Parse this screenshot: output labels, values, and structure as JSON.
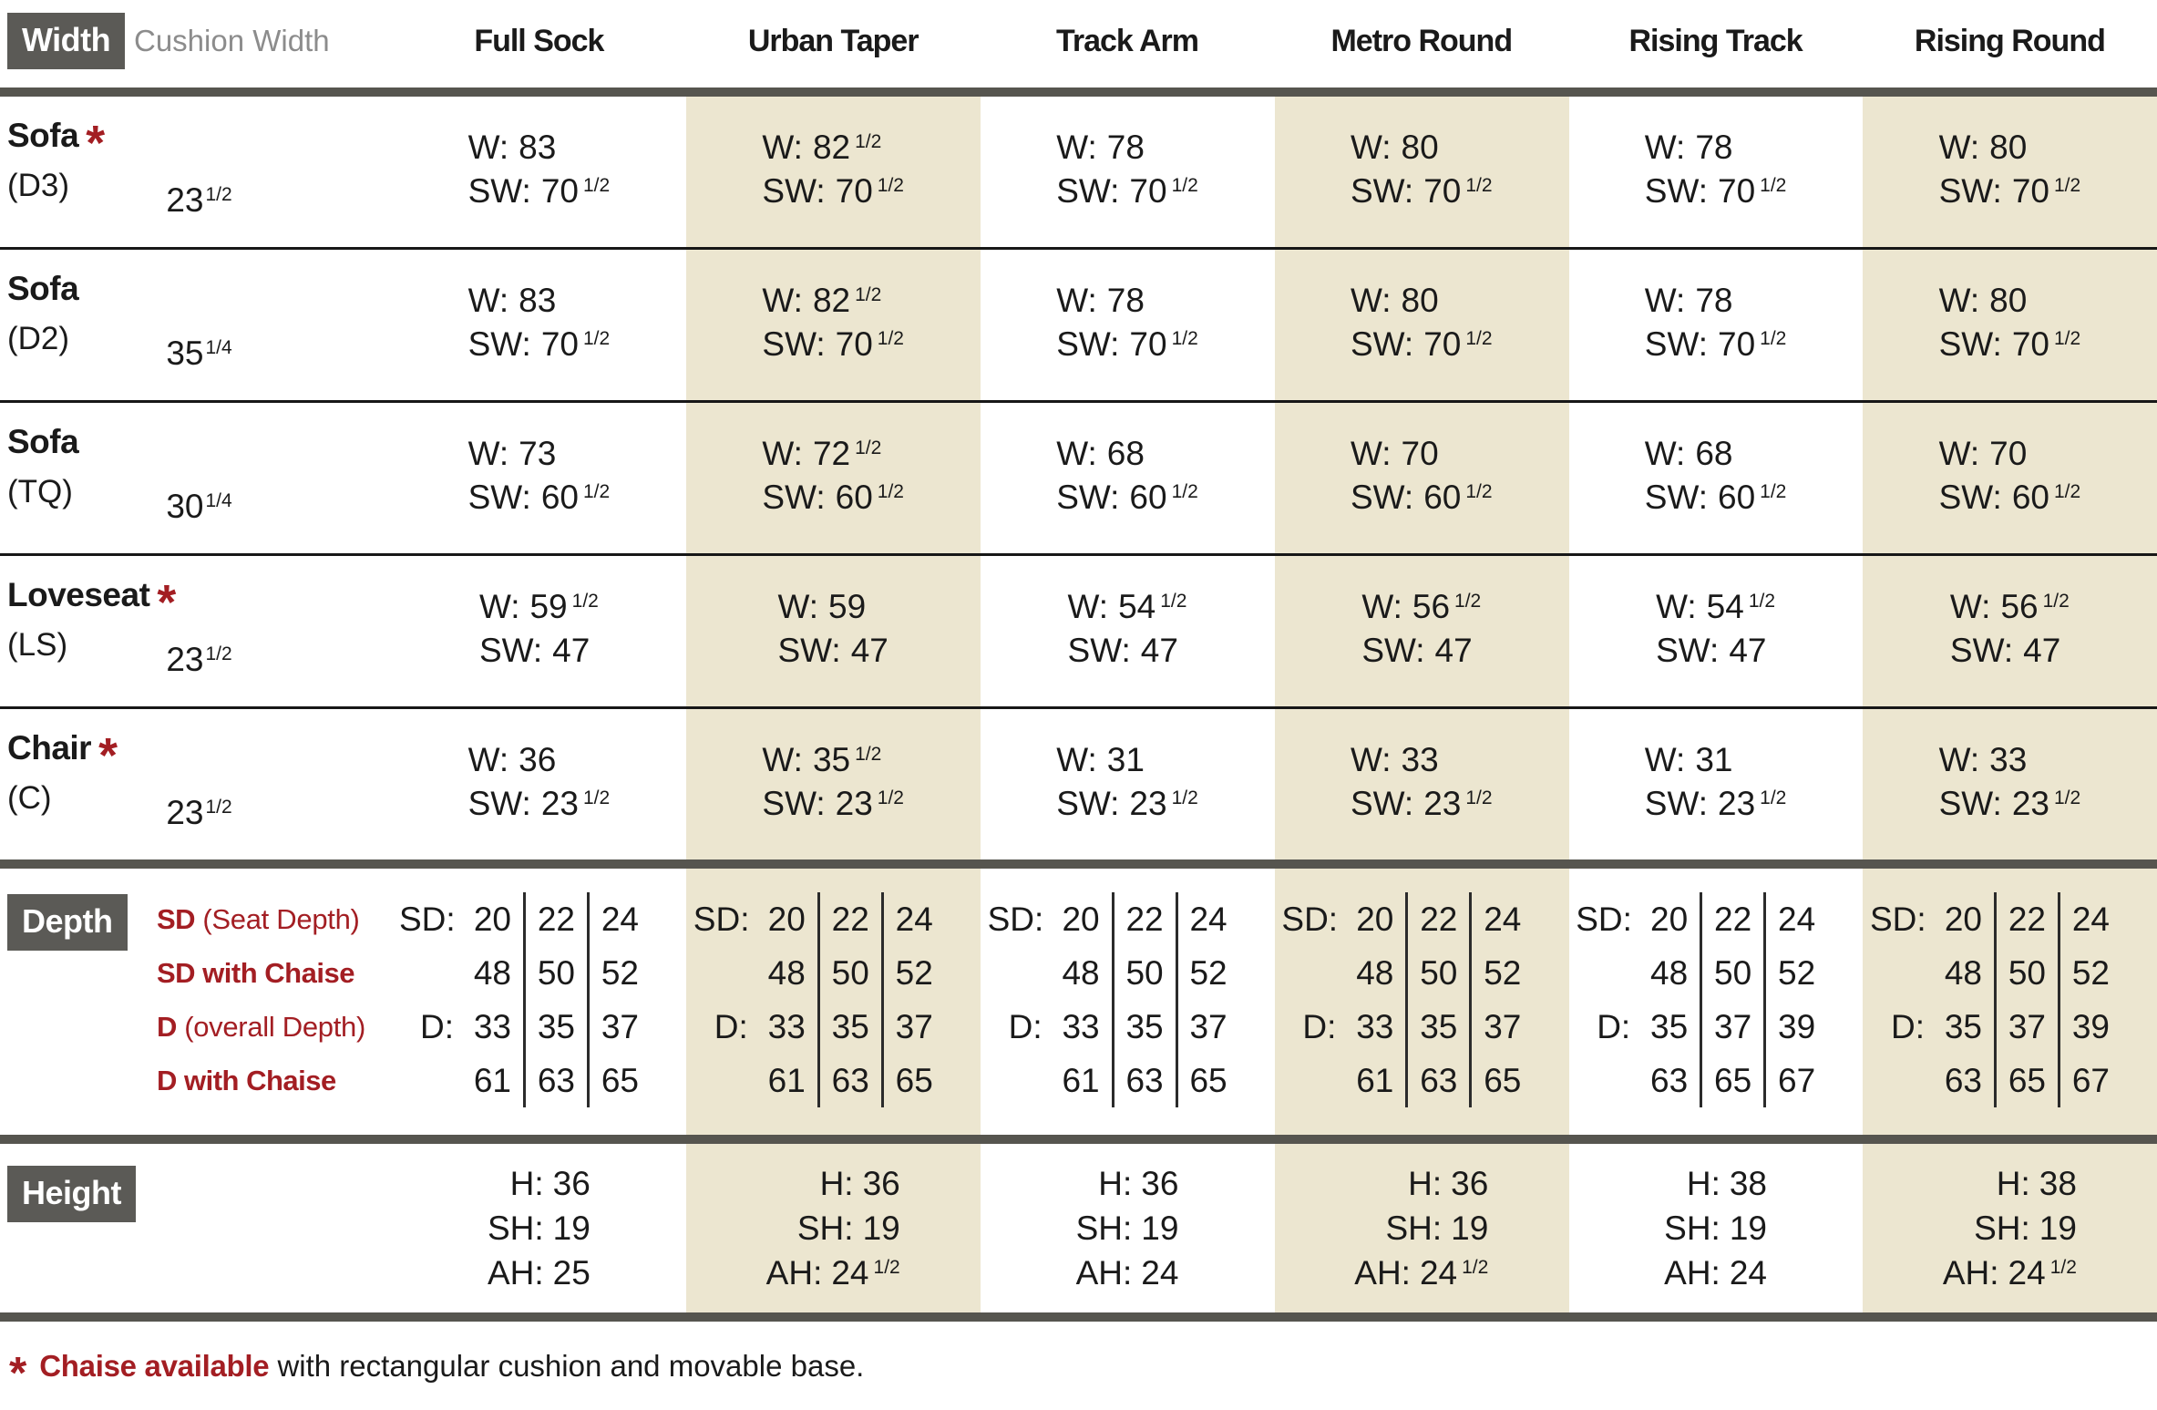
{
  "header": {
    "width_label": "Width",
    "cushion_width_label": "Cushion Width",
    "columns": [
      "Full Sock",
      "Urban Taper",
      "Track Arm",
      "Metro Round",
      "Rising Track",
      "Rising Round"
    ]
  },
  "labels": {
    "w": "W:",
    "sw": "SW:"
  },
  "width_rows": [
    {
      "name": "Sofa",
      "asterisk": true,
      "code": "(D3)",
      "cushion": {
        "whole": "23",
        "frac": "1/2"
      },
      "cells": [
        {
          "w": "83",
          "wf": "",
          "sw": "70",
          "swf": "1/2"
        },
        {
          "w": "82",
          "wf": "1/2",
          "sw": "70",
          "swf": "1/2"
        },
        {
          "w": "78",
          "wf": "",
          "sw": "70",
          "swf": "1/2"
        },
        {
          "w": "80",
          "wf": "",
          "sw": "70",
          "swf": "1/2"
        },
        {
          "w": "78",
          "wf": "",
          "sw": "70",
          "swf": "1/2"
        },
        {
          "w": "80",
          "wf": "",
          "sw": "70",
          "swf": "1/2"
        }
      ]
    },
    {
      "name": "Sofa",
      "asterisk": false,
      "code": "(D2)",
      "cushion": {
        "whole": "35",
        "frac": "1/4"
      },
      "cells": [
        {
          "w": "83",
          "wf": "",
          "sw": "70",
          "swf": "1/2"
        },
        {
          "w": "82",
          "wf": "1/2",
          "sw": "70",
          "swf": "1/2"
        },
        {
          "w": "78",
          "wf": "",
          "sw": "70",
          "swf": "1/2"
        },
        {
          "w": "80",
          "wf": "",
          "sw": "70",
          "swf": "1/2"
        },
        {
          "w": "78",
          "wf": "",
          "sw": "70",
          "swf": "1/2"
        },
        {
          "w": "80",
          "wf": "",
          "sw": "70",
          "swf": "1/2"
        }
      ]
    },
    {
      "name": "Sofa",
      "asterisk": false,
      "code": "(TQ)",
      "cushion": {
        "whole": "30",
        "frac": "1/4"
      },
      "cells": [
        {
          "w": "73",
          "wf": "",
          "sw": "60",
          "swf": "1/2"
        },
        {
          "w": "72",
          "wf": "1/2",
          "sw": "60",
          "swf": "1/2"
        },
        {
          "w": "68",
          "wf": "",
          "sw": "60",
          "swf": "1/2"
        },
        {
          "w": "70",
          "wf": "",
          "sw": "60",
          "swf": "1/2"
        },
        {
          "w": "68",
          "wf": "",
          "sw": "60",
          "swf": "1/2"
        },
        {
          "w": "70",
          "wf": "",
          "sw": "60",
          "swf": "1/2"
        }
      ]
    },
    {
      "name": "Loveseat",
      "asterisk": true,
      "code": "(LS)",
      "cushion": {
        "whole": "23",
        "frac": "1/2"
      },
      "cells": [
        {
          "w": "59",
          "wf": "1/2",
          "sw": "47",
          "swf": ""
        },
        {
          "w": "59",
          "wf": "",
          "sw": "47",
          "swf": ""
        },
        {
          "w": "54",
          "wf": "1/2",
          "sw": "47",
          "swf": ""
        },
        {
          "w": "56",
          "wf": "1/2",
          "sw": "47",
          "swf": ""
        },
        {
          "w": "54",
          "wf": "1/2",
          "sw": "47",
          "swf": ""
        },
        {
          "w": "56",
          "wf": "1/2",
          "sw": "47",
          "swf": ""
        }
      ]
    },
    {
      "name": "Chair",
      "asterisk": true,
      "code": "(C)",
      "cushion": {
        "whole": "23",
        "frac": "1/2"
      },
      "cells": [
        {
          "w": "36",
          "wf": "",
          "sw": "23",
          "swf": "1/2"
        },
        {
          "w": "35",
          "wf": "1/2",
          "sw": "23",
          "swf": "1/2"
        },
        {
          "w": "31",
          "wf": "",
          "sw": "23",
          "swf": "1/2"
        },
        {
          "w": "33",
          "wf": "",
          "sw": "23",
          "swf": "1/2"
        },
        {
          "w": "31",
          "wf": "",
          "sw": "23",
          "swf": "1/2"
        },
        {
          "w": "33",
          "wf": "",
          "sw": "23",
          "swf": "1/2"
        }
      ]
    }
  ],
  "depth": {
    "section_label": "Depth",
    "sd_prefix": "SD:",
    "d_prefix": "D:",
    "row_labels": [
      {
        "bold": "SD",
        "rest": " (Seat Depth)"
      },
      {
        "bold": "SD with Chaise",
        "rest": ""
      },
      {
        "bold": "D",
        "rest": " (overall Depth)"
      },
      {
        "bold": "D with Chaise",
        "rest": ""
      }
    ],
    "columns": [
      {
        "sd": [
          "20",
          "22",
          "24"
        ],
        "sd_chaise": [
          "48",
          "50",
          "52"
        ],
        "d": [
          "33",
          "35",
          "37"
        ],
        "d_chaise": [
          "61",
          "63",
          "65"
        ]
      },
      {
        "sd": [
          "20",
          "22",
          "24"
        ],
        "sd_chaise": [
          "48",
          "50",
          "52"
        ],
        "d": [
          "33",
          "35",
          "37"
        ],
        "d_chaise": [
          "61",
          "63",
          "65"
        ]
      },
      {
        "sd": [
          "20",
          "22",
          "24"
        ],
        "sd_chaise": [
          "48",
          "50",
          "52"
        ],
        "d": [
          "33",
          "35",
          "37"
        ],
        "d_chaise": [
          "61",
          "63",
          "65"
        ]
      },
      {
        "sd": [
          "20",
          "22",
          "24"
        ],
        "sd_chaise": [
          "48",
          "50",
          "52"
        ],
        "d": [
          "33",
          "35",
          "37"
        ],
        "d_chaise": [
          "61",
          "63",
          "65"
        ]
      },
      {
        "sd": [
          "20",
          "22",
          "24"
        ],
        "sd_chaise": [
          "48",
          "50",
          "52"
        ],
        "d": [
          "35",
          "37",
          "39"
        ],
        "d_chaise": [
          "63",
          "65",
          "67"
        ]
      },
      {
        "sd": [
          "20",
          "22",
          "24"
        ],
        "sd_chaise": [
          "48",
          "50",
          "52"
        ],
        "d": [
          "35",
          "37",
          "39"
        ],
        "d_chaise": [
          "63",
          "65",
          "67"
        ]
      }
    ]
  },
  "height": {
    "section_label": "Height",
    "h_prefix": "H:",
    "sh_prefix": "SH:",
    "ah_prefix": "AH:",
    "columns": [
      {
        "h": "36",
        "sh": "19",
        "ah": "25",
        "ahf": ""
      },
      {
        "h": "36",
        "sh": "19",
        "ah": "24",
        "ahf": "1/2"
      },
      {
        "h": "36",
        "sh": "19",
        "ah": "24",
        "ahf": ""
      },
      {
        "h": "36",
        "sh": "19",
        "ah": "24",
        "ahf": "1/2"
      },
      {
        "h": "38",
        "sh": "19",
        "ah": "24",
        "ahf": ""
      },
      {
        "h": "38",
        "sh": "19",
        "ah": "24",
        "ahf": "1/2"
      }
    ]
  },
  "footnote": {
    "asterisk": "*",
    "bold": "Chaise available",
    "rest": " with rectangular cushion and movable base."
  },
  "colors": {
    "beige": "#ece6d0",
    "dark_gray": "#5b5a56",
    "red": "#a31e23",
    "rule_heavy": "#56554f",
    "rule_thin": "#171717"
  }
}
